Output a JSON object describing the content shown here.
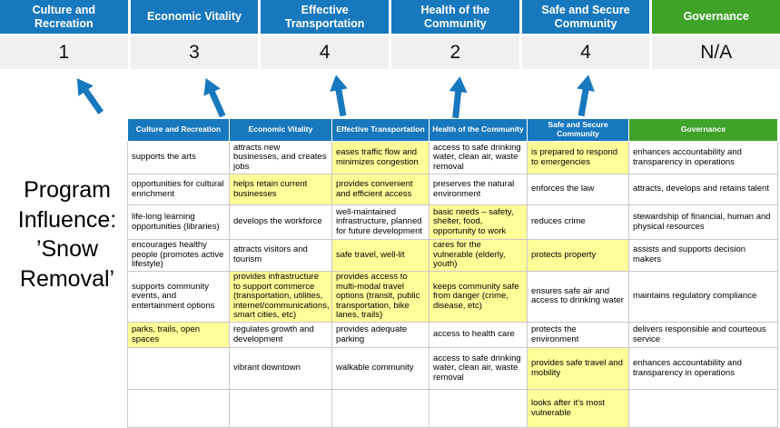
{
  "colors": {
    "blue": "#1878be",
    "green": "#3fa32a",
    "yellow": "#ffff99",
    "band": "#f0f0f0"
  },
  "program_label": "Program Influence: ’Snow Removal’",
  "summary": {
    "columns": [
      {
        "label": "Culture and Recreation",
        "score": "1",
        "accent": "blue"
      },
      {
        "label": "Economic Vitality",
        "score": "3",
        "accent": "blue"
      },
      {
        "label": "Effective Transportation",
        "score": "4",
        "accent": "blue"
      },
      {
        "label": "Health of the Community",
        "score": "2",
        "accent": "blue"
      },
      {
        "label": "Safe and Secure Community",
        "score": "4",
        "accent": "blue"
      },
      {
        "label": "Governance",
        "score": "N/A",
        "accent": "green"
      }
    ]
  },
  "matrix": {
    "headers": [
      {
        "label": "Culture and Recreation",
        "accent": "blue"
      },
      {
        "label": "Economic Vitality",
        "accent": "blue"
      },
      {
        "label": "Effective Transportation",
        "accent": "blue"
      },
      {
        "label": "Health of the Community",
        "accent": "blue"
      },
      {
        "label": "Safe and Secure Community",
        "accent": "blue"
      },
      {
        "label": "Governance",
        "accent": "green"
      }
    ],
    "rows": [
      [
        {
          "text": "supports the arts",
          "hl": false
        },
        {
          "text": "attracts new businesses, and creates jobs",
          "hl": false
        },
        {
          "text": "eases traffic flow and minimizes congestion",
          "hl": true
        },
        {
          "text": "access to safe drinking water, clean air, waste removal",
          "hl": false
        },
        {
          "text": "is prepared to respond to emergencies",
          "hl": true
        },
        {
          "text": "enhances accountability and transparency in operations",
          "hl": false
        }
      ],
      [
        {
          "text": "opportunities for cultural enrichment",
          "hl": false
        },
        {
          "text": "helps retain current businesses",
          "hl": true
        },
        {
          "text": "provides convenient and efficient access",
          "hl": true
        },
        {
          "text": "preserves the natural environment",
          "hl": false
        },
        {
          "text": "enforces the law",
          "hl": false
        },
        {
          "text": "attracts, develops and retains talent",
          "hl": false
        }
      ],
      [
        {
          "text": "life-long learning opportunities (libraries)",
          "hl": false
        },
        {
          "text": "develops the workforce",
          "hl": false
        },
        {
          "text": "well-maintained infrastructure, planned for future development",
          "hl": false
        },
        {
          "text": "basic needs – safety, shelter, food, opportunity to work",
          "hl": true
        },
        {
          "text": "reduces crime",
          "hl": false
        },
        {
          "text": "stewardship of financial, human and physical resources",
          "hl": false
        }
      ],
      [
        {
          "text": "encourages healthy people (promotes active lifestyle)",
          "hl": false
        },
        {
          "text": "attracts visitors and tourism",
          "hl": false
        },
        {
          "text": "safe travel, well-lit",
          "hl": true
        },
        {
          "text": "cares for the vulnerable (elderly, youth)",
          "hl": true
        },
        {
          "text": "protects property",
          "hl": true
        },
        {
          "text": "assists and supports decision makers",
          "hl": false
        }
      ],
      [
        {
          "text": "supports community events, and entertainment options",
          "hl": false
        },
        {
          "text": "provides infrastructure to support commerce (transportation, utilities, internet/communications, smart cities, etc)",
          "hl": true
        },
        {
          "text": "provides access to multi-modal travel options (transit, public transportation, bike lanes, trails)",
          "hl": true
        },
        {
          "text": "keeps community safe from danger (crime, disease, etc)",
          "hl": true
        },
        {
          "text": "ensures safe air and access to drinking water",
          "hl": false
        },
        {
          "text": "maintains regulatory compliance",
          "hl": false
        }
      ],
      [
        {
          "text": "parks, trails, open spaces",
          "hl": true
        },
        {
          "text": "regulates growth and development",
          "hl": false
        },
        {
          "text": "provides adequate parking",
          "hl": false
        },
        {
          "text": "access to health care",
          "hl": false
        },
        {
          "text": "protects the environment",
          "hl": false
        },
        {
          "text": "delivers responsible and courteous service",
          "hl": false
        }
      ],
      [
        {
          "text": "",
          "hl": false
        },
        {
          "text": "vibrant downtown",
          "hl": false
        },
        {
          "text": "walkable community",
          "hl": false
        },
        {
          "text": "access to safe drinking water, clean air, waste removal",
          "hl": false
        },
        {
          "text": "provides safe travel and mobility",
          "hl": true
        },
        {
          "text": "enhances accountability and transparency in operations",
          "hl": false
        }
      ],
      [
        {
          "text": "",
          "hl": false
        },
        {
          "text": "",
          "hl": false
        },
        {
          "text": "",
          "hl": false
        },
        {
          "text": "",
          "hl": false
        },
        {
          "text": "looks after it's most vulnerable",
          "hl": true
        },
        {
          "text": "",
          "hl": false
        }
      ]
    ]
  }
}
